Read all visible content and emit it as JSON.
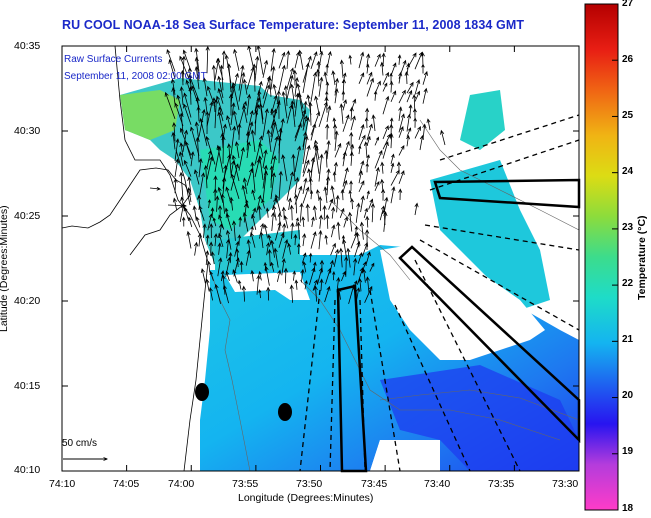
{
  "title": "RU COOL  NOAA-18  Sea Surface Temperature:  September 11, 2008 1834 GMT",
  "legend": {
    "label": "Raw Surface Currents",
    "time": "September 11, 2008 02:00 GMT"
  },
  "axes": {
    "ylabel": "Latitude (Degrees:Minutes)",
    "xlabel": "Longitude (Degrees:Minutes)",
    "lat_ticks": [
      "40:35",
      "40:30",
      "40:25",
      "40:20",
      "40:15",
      "40:10"
    ],
    "lon_ticks": [
      "74:10",
      "74:05",
      "74:00",
      "73:55",
      "73:50",
      "73:45",
      "73:40",
      "73:35",
      "73:30"
    ]
  },
  "colorbar": {
    "label": "Temperature (°C)",
    "min": 18,
    "max": 27,
    "ticks": [
      "27",
      "26",
      "25",
      "24",
      "23",
      "22",
      "21",
      "20",
      "19",
      "18"
    ]
  },
  "scale": {
    "label": "50 cm/s"
  },
  "colors": {
    "title": "#1a28c8",
    "land": "#ffffff",
    "frame": "#000000"
  }
}
